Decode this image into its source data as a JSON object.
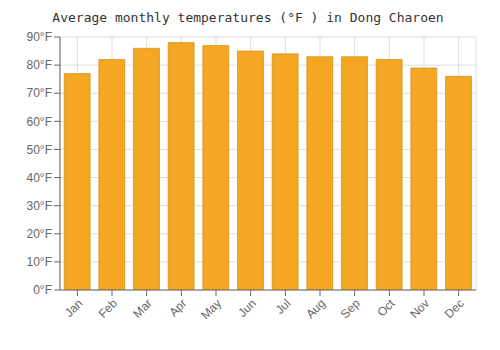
{
  "chart_data": {
    "type": "bar",
    "title": "Average monthly temperatures (°F ) in Dong Charoen",
    "categories": [
      "Jan",
      "Feb",
      "Mar",
      "Apr",
      "May",
      "Jun",
      "Jul",
      "Aug",
      "Sep",
      "Oct",
      "Nov",
      "Dec"
    ],
    "values": [
      77,
      82,
      86,
      88,
      87,
      85,
      84,
      83,
      83,
      82,
      79,
      76
    ],
    "color": "#F5A623",
    "ylim": [
      0,
      90
    ],
    "yticks": [
      {
        "value": 0,
        "label": "0°F"
      },
      {
        "value": 10,
        "label": "10°F"
      },
      {
        "value": 20,
        "label": "20°F"
      },
      {
        "value": 30,
        "label": "30°F"
      },
      {
        "value": 40,
        "label": "40°F"
      },
      {
        "value": 50,
        "label": "50°F"
      },
      {
        "value": 60,
        "label": "60°F"
      },
      {
        "value": 70,
        "label": "70°F"
      },
      {
        "value": 80,
        "label": "80°F"
      },
      {
        "value": 90,
        "label": "90°F"
      }
    ],
    "grid": true
  }
}
